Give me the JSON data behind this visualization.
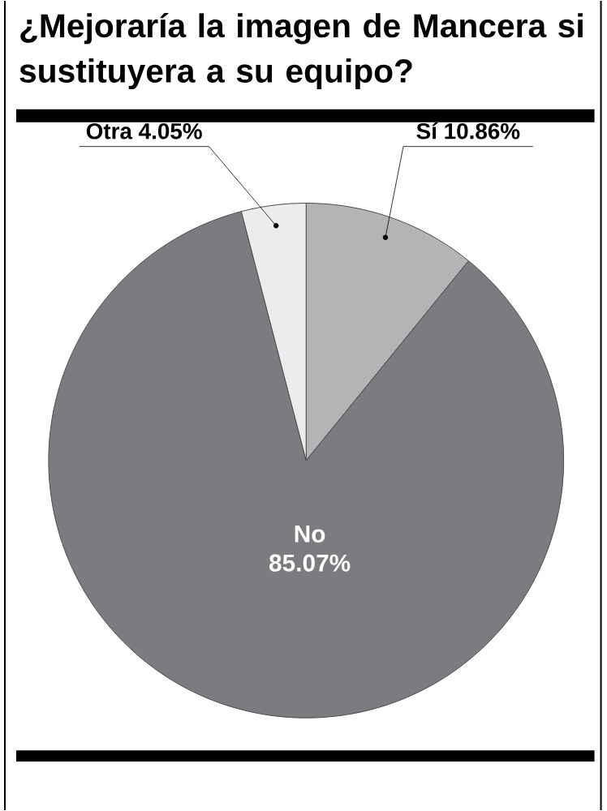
{
  "chart_data": {
    "type": "pie",
    "title": "¿Mejoraría la imagen de Mancera si sustituyera a su equipo?",
    "categories": [
      "Sí",
      "No",
      "Otra"
    ],
    "values": [
      10.86,
      85.07,
      4.05
    ],
    "colors": [
      "#b4b4b6",
      "#7c7c80",
      "#ececee"
    ],
    "value_labels": [
      "10.86%",
      "85.07%",
      "4.05%"
    ]
  }
}
